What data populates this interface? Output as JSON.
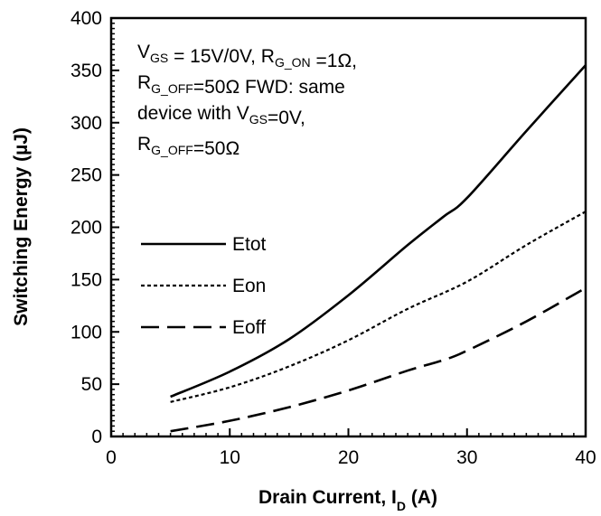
{
  "chart_data": {
    "type": "line",
    "title": "",
    "xlabel": "Drain Current, I",
    "xlabel_sub": "D",
    "xlabel_unit": " (A)",
    "ylabel": "Switching Energy (µJ)",
    "xlim": [
      0,
      40
    ],
    "ylim": [
      0,
      400
    ],
    "xticks": [
      0,
      10,
      20,
      30,
      40
    ],
    "yticks": [
      0,
      50,
      100,
      150,
      200,
      250,
      300,
      350,
      400
    ],
    "xtick_labels": [
      "0",
      "10",
      "20",
      "30",
      "40"
    ],
    "ytick_labels": [
      "0",
      "50",
      "100",
      "150",
      "200",
      "250",
      "300",
      "350",
      "400"
    ],
    "grid": false,
    "legend_position": "left-center",
    "annotation": {
      "line1": [
        {
          "t": "V"
        },
        {
          "t": "GS",
          "sub": true
        },
        {
          "t": " = 15V/0V, R"
        },
        {
          "t": "G_ON",
          "sub": true
        },
        {
          "t": " =1Ω,"
        }
      ],
      "line2": [
        {
          "t": "R"
        },
        {
          "t": "G_OFF",
          "sub": true
        },
        {
          "t": "=50Ω FWD: same"
        }
      ],
      "line3": [
        {
          "t": "device with V"
        },
        {
          "t": "GS",
          "sub": true
        },
        {
          "t": "=0V,"
        }
      ],
      "line4": [
        {
          "t": "R"
        },
        {
          "t": "G_OFF",
          "sub": true
        },
        {
          "t": "=50Ω"
        }
      ]
    },
    "series": [
      {
        "name": "Etot",
        "style": "solid",
        "x": [
          5,
          10,
          15,
          20,
          25,
          28,
          30,
          35,
          40
        ],
        "y": [
          38,
          62,
          93,
          135,
          183,
          210,
          228,
          292,
          355
        ]
      },
      {
        "name": "Eon",
        "style": "dotted",
        "x": [
          5,
          10,
          15,
          20,
          25,
          30,
          35,
          40
        ],
        "y": [
          33,
          47,
          67,
          92,
          122,
          148,
          183,
          215
        ]
      },
      {
        "name": "Eoff",
        "style": "dashed",
        "x": [
          5,
          10,
          15,
          20,
          25,
          28,
          30,
          35,
          40
        ],
        "y": [
          5,
          15,
          28,
          44,
          63,
          73,
          82,
          110,
          142
        ]
      }
    ]
  }
}
